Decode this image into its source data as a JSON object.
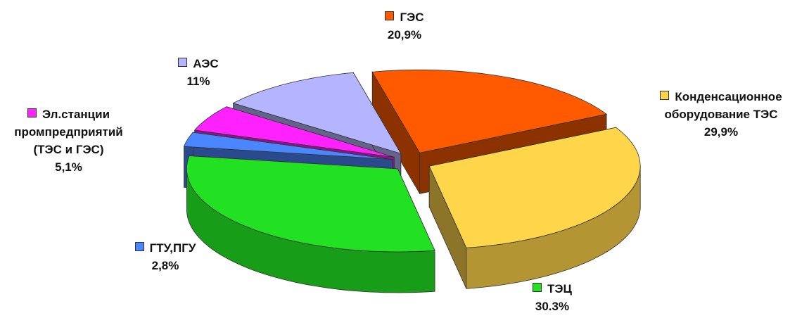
{
  "chart_data": {
    "type": "pie3d",
    "categories": [
      "ГЭС",
      "Конденсационное оборудование ТЭС",
      "ТЭЦ",
      "ГТУ,ПГУ",
      "Эл.станции промпредприятий (ТЭС и ГЭС)",
      "АЭС"
    ],
    "values": [
      20.9,
      29.9,
      30.3,
      2.8,
      5.1,
      11
    ],
    "value_labels": [
      "20,9%",
      "29,9%",
      "30.3%",
      "2,8%",
      "5,1%",
      "11%"
    ],
    "colors": [
      "#ff5a00",
      "#ffd54a",
      "#22e022",
      "#4a86ff",
      "#ff22ff",
      "#b4b4ff"
    ]
  }
}
